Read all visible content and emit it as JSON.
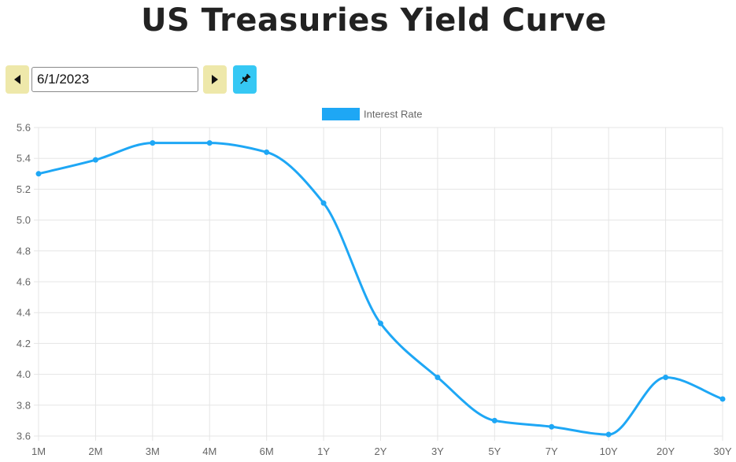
{
  "page": {
    "title": "US Treasuries Yield Curve"
  },
  "controls": {
    "date_value": "6/1/2023",
    "prev_icon": "caret-left-icon",
    "next_icon": "caret-right-icon",
    "pin_icon": "pin-icon"
  },
  "colors": {
    "line": "#1ea7f5",
    "prev_next_bg": "#eee8aa",
    "pin_bg": "#36c8f4",
    "grid": "#e5e5e5"
  },
  "chart_data": {
    "type": "line",
    "categories": [
      "1M",
      "2M",
      "3M",
      "4M",
      "6M",
      "1Y",
      "2Y",
      "3Y",
      "5Y",
      "7Y",
      "10Y",
      "20Y",
      "30Y"
    ],
    "series": [
      {
        "name": "Interest Rate",
        "values": [
          5.3,
          5.39,
          5.5,
          5.5,
          5.44,
          5.11,
          4.33,
          3.98,
          3.7,
          3.66,
          3.61,
          3.98,
          3.84
        ]
      }
    ],
    "yticks": [
      "3.6",
      "3.8",
      "4.0",
      "4.2",
      "4.4",
      "4.6",
      "4.8",
      "5.0",
      "5.2",
      "5.4",
      "5.6"
    ],
    "ylim": [
      3.6,
      5.6
    ],
    "legend_position": "top",
    "grid": true
  }
}
